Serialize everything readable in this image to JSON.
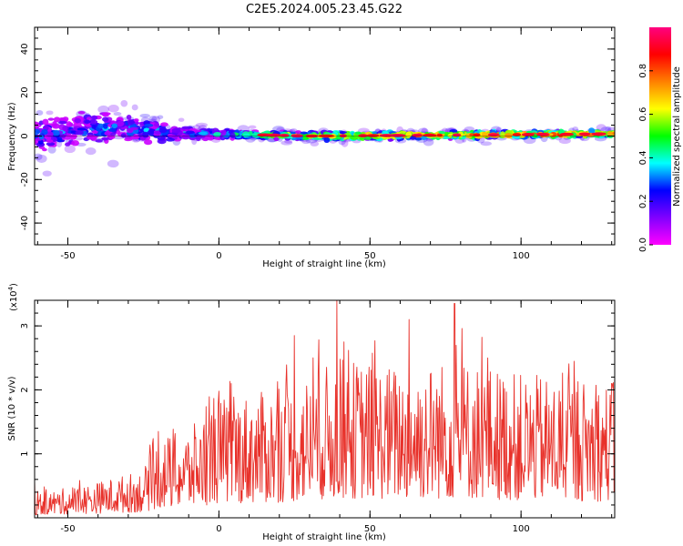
{
  "title": "C2E5.2024.005.23.45.G22",
  "chart_data": [
    {
      "type": "heatmap",
      "name": "spectrogram",
      "xlabel": "Height of straight line (km)",
      "ylabel": "Frequency (Hz)",
      "xlim": [
        -61,
        131
      ],
      "ylim": [
        -50,
        50
      ],
      "xticks": [
        "-50",
        "0",
        "50",
        "100"
      ],
      "yticks": [
        "40",
        "20",
        "0",
        "-20",
        "-40"
      ],
      "colorbar": {
        "label": "Normalized spectral amplitude",
        "range": [
          0,
          1
        ],
        "ticks": [
          "0.0",
          "0.2",
          "0.4",
          "0.6",
          "0.8"
        ],
        "stops": [
          "#ff00ff",
          "#8000ff",
          "#0000ff",
          "#00ffff",
          "#00ff00",
          "#ffff00",
          "#ff8000",
          "#ff0000",
          "#ff0080"
        ]
      },
      "band": {
        "center_freq_hz": [
          [
            -61,
            0
          ],
          [
            -45,
            3
          ],
          [
            -35,
            4
          ],
          [
            -25,
            3
          ],
          [
            -15,
            1
          ],
          [
            0,
            1
          ],
          [
            30,
            0
          ],
          [
            131,
            1
          ]
        ],
        "spread_hz": [
          [
            -61,
            9
          ],
          [
            -35,
            8
          ],
          [
            -20,
            6
          ],
          [
            -10,
            3
          ],
          [
            10,
            2
          ],
          [
            131,
            1.5
          ]
        ],
        "peak_amplitude": [
          [
            -61,
            0.35
          ],
          [
            -20,
            0.4
          ],
          [
            0,
            0.45
          ],
          [
            20,
            0.7
          ],
          [
            60,
            0.85
          ],
          [
            131,
            0.9
          ]
        ]
      }
    },
    {
      "type": "line",
      "name": "snr",
      "xlabel": "Height of straight line (km)",
      "ylabel": "SNR (10 * v/v)",
      "multiplier": "(x10",
      "multiplier_exp": "4",
      "multiplier_close": ")",
      "xlim": [
        -61,
        131
      ],
      "ylim": [
        0,
        3.4
      ],
      "xticks": [
        "-50",
        "0",
        "50",
        "100"
      ],
      "yticks": [
        "3",
        "2",
        "1"
      ],
      "color": "#e8312a",
      "envelope": [
        [
          -61,
          0.3
        ],
        [
          -40,
          0.45
        ],
        [
          -25,
          0.6
        ],
        [
          -20,
          1.0
        ],
        [
          -10,
          1.1
        ],
        [
          0,
          1.5
        ],
        [
          20,
          1.6
        ],
        [
          40,
          2.0
        ],
        [
          60,
          1.9
        ],
        [
          80,
          2.0
        ],
        [
          100,
          1.8
        ],
        [
          131,
          1.7
        ]
      ],
      "peaks": [
        [
          -61,
          0.6
        ],
        [
          -20,
          1.35
        ],
        [
          0,
          1.98
        ],
        [
          25,
          2.85
        ],
        [
          39,
          3.4
        ],
        [
          63,
          3.1
        ],
        [
          78,
          3.35
        ],
        [
          89,
          2.5
        ],
        [
          130,
          2.1
        ]
      ]
    }
  ]
}
